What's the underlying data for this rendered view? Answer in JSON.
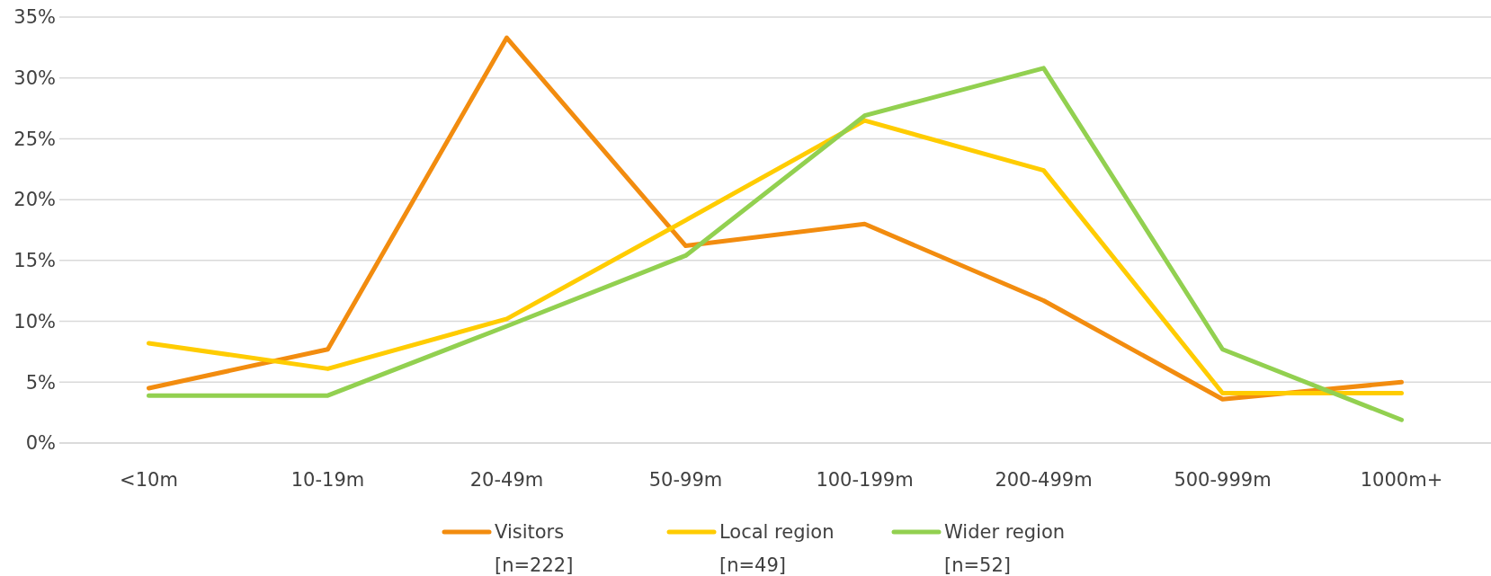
{
  "chart_data": {
    "type": "line",
    "categories": [
      "<10m",
      "10-19m",
      "20-49m",
      "50-99m",
      "100-199m",
      "200-499m",
      "500-999m",
      "1000m+"
    ],
    "series": [
      {
        "name": "Visitors [n=222]",
        "color": "#f28c0f",
        "values": [
          4.5,
          7.7,
          33.3,
          16.2,
          18.0,
          11.7,
          3.6,
          5.0
        ]
      },
      {
        "name": "Local region [n=49]",
        "color": "#ffcc00",
        "values": [
          8.2,
          6.1,
          10.2,
          18.3,
          26.5,
          22.4,
          4.1,
          4.1
        ]
      },
      {
        "name": "Wider region [n=52]",
        "color": "#92d050",
        "values": [
          3.9,
          3.9,
          9.6,
          15.4,
          26.9,
          30.8,
          7.7,
          1.9
        ]
      }
    ],
    "ylim": [
      0,
      35
    ],
    "yticks": [
      {
        "value": 0,
        "label": "0%"
      },
      {
        "value": 5,
        "label": "5%"
      },
      {
        "value": 10,
        "label": "10%"
      },
      {
        "value": 15,
        "label": "15%"
      },
      {
        "value": 20,
        "label": "20%"
      },
      {
        "value": 25,
        "label": "25%"
      },
      {
        "value": 30,
        "label": "30%"
      },
      {
        "value": 35,
        "label": "35%"
      }
    ],
    "grid": "y",
    "legend": "bottom",
    "marker": "none",
    "line_style": "solid"
  }
}
